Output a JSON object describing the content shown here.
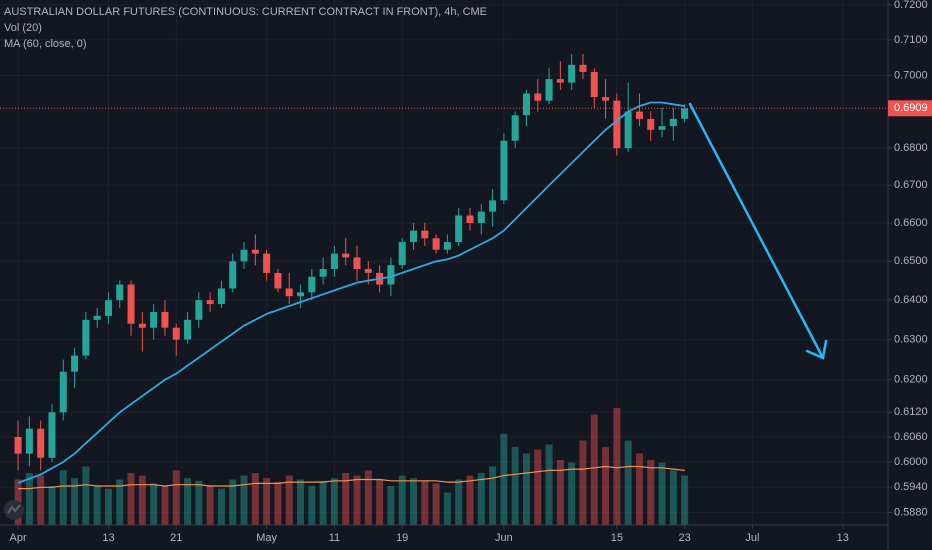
{
  "chart_data": {
    "type": "candlestick",
    "title": "AUSTRALIAN DOLLAR FUTURES (CONTINUOUS: CURRENT CONTRACT IN FRONT), 4h, CME",
    "volume_label": "Vol (20)",
    "ma_label": "MA (60, close, 0)",
    "log": true,
    "grid": true,
    "up_color": "#26a69a",
    "down_color": "#ef5350",
    "ma_color": "#2ea8e0",
    "volume_ma_color": "#f0924f",
    "last_price_color": "#ef5350",
    "open": [
      0.606,
      0.602,
      0.608,
      0.601,
      0.612,
      0.622,
      0.626,
      0.635,
      0.636,
      0.64,
      0.644,
      0.634,
      0.633,
      0.637,
      0.633,
      0.63,
      0.635,
      0.64,
      0.639,
      0.643,
      0.65,
      0.653,
      0.652,
      0.647,
      0.643,
      0.641,
      0.642,
      0.646,
      0.648,
      0.652,
      0.651,
      0.648,
      0.647,
      0.644,
      0.649,
      0.655,
      0.658,
      0.656,
      0.653,
      0.655,
      0.662,
      0.66,
      0.663,
      0.666,
      0.682,
      0.689,
      0.695,
      0.693,
      0.699,
      0.698,
      0.703,
      0.701,
      0.694,
      0.693,
      0.68,
      0.69,
      0.688,
      0.685,
      0.686,
      0.688
    ],
    "high": [
      0.61,
      0.611,
      0.61,
      0.614,
      0.625,
      0.628,
      0.637,
      0.638,
      0.642,
      0.645,
      0.645,
      0.637,
      0.639,
      0.64,
      0.634,
      0.637,
      0.642,
      0.642,
      0.645,
      0.652,
      0.655,
      0.657,
      0.653,
      0.648,
      0.647,
      0.644,
      0.648,
      0.651,
      0.654,
      0.656,
      0.654,
      0.65,
      0.649,
      0.651,
      0.656,
      0.66,
      0.66,
      0.657,
      0.657,
      0.664,
      0.664,
      0.665,
      0.669,
      0.684,
      0.69,
      0.696,
      0.699,
      0.702,
      0.704,
      0.706,
      0.706,
      0.702,
      0.699,
      0.695,
      0.698,
      0.695,
      0.69,
      0.691,
      0.691,
      0.692
    ],
    "low": [
      0.598,
      0.599,
      0.598,
      0.6,
      0.61,
      0.618,
      0.625,
      0.633,
      0.634,
      0.638,
      0.631,
      0.627,
      0.63,
      0.631,
      0.626,
      0.629,
      0.633,
      0.637,
      0.638,
      0.642,
      0.648,
      0.649,
      0.645,
      0.642,
      0.639,
      0.638,
      0.64,
      0.644,
      0.646,
      0.649,
      0.645,
      0.644,
      0.642,
      0.641,
      0.648,
      0.653,
      0.654,
      0.652,
      0.652,
      0.654,
      0.658,
      0.657,
      0.659,
      0.665,
      0.68,
      0.686,
      0.69,
      0.692,
      0.696,
      0.696,
      0.699,
      0.691,
      0.688,
      0.678,
      0.679,
      0.686,
      0.682,
      0.683,
      0.682,
      0.687
    ],
    "close": [
      0.602,
      0.608,
      0.601,
      0.612,
      0.622,
      0.626,
      0.635,
      0.636,
      0.64,
      0.644,
      0.634,
      0.633,
      0.637,
      0.633,
      0.63,
      0.635,
      0.64,
      0.639,
      0.643,
      0.65,
      0.653,
      0.652,
      0.647,
      0.643,
      0.641,
      0.642,
      0.646,
      0.648,
      0.652,
      0.651,
      0.648,
      0.647,
      0.644,
      0.649,
      0.655,
      0.658,
      0.656,
      0.653,
      0.655,
      0.662,
      0.66,
      0.663,
      0.666,
      0.682,
      0.689,
      0.695,
      0.693,
      0.699,
      0.698,
      0.703,
      0.701,
      0.694,
      0.693,
      0.68,
      0.69,
      0.688,
      0.685,
      0.686,
      0.688,
      0.6909
    ],
    "ma": [
      0.595,
      0.596,
      0.597,
      0.5985,
      0.6,
      0.602,
      0.6045,
      0.607,
      0.6095,
      0.612,
      0.614,
      0.616,
      0.618,
      0.62,
      0.6215,
      0.6235,
      0.6255,
      0.6275,
      0.6295,
      0.6315,
      0.6335,
      0.635,
      0.6365,
      0.6375,
      0.6385,
      0.6395,
      0.6405,
      0.6415,
      0.6425,
      0.6435,
      0.6445,
      0.645,
      0.6455,
      0.646,
      0.647,
      0.648,
      0.649,
      0.65,
      0.6505,
      0.6515,
      0.653,
      0.6545,
      0.656,
      0.658,
      0.661,
      0.664,
      0.667,
      0.67,
      0.673,
      0.676,
      0.679,
      0.682,
      0.685,
      0.6875,
      0.69,
      0.6915,
      0.6925,
      0.6925,
      0.692,
      0.6915
    ],
    "volume": [
      35,
      40,
      38,
      30,
      42,
      36,
      45,
      30,
      28,
      35,
      40,
      38,
      32,
      30,
      42,
      36,
      34,
      30,
      28,
      35,
      38,
      40,
      36,
      33,
      38,
      35,
      30,
      34,
      36,
      40,
      38,
      42,
      35,
      30,
      38,
      36,
      34,
      32,
      25,
      35,
      38,
      40,
      45,
      70,
      60,
      55,
      58,
      62,
      50,
      48,
      65,
      85,
      60,
      90,
      65,
      55,
      50,
      48,
      42,
      38
    ],
    "volume_ma": [
      28,
      28,
      29,
      29,
      30,
      30,
      31,
      30,
      30,
      30,
      31,
      31,
      31,
      30,
      31,
      31,
      31,
      30,
      30,
      30,
      31,
      32,
      32,
      32,
      33,
      33,
      33,
      33,
      34,
      34,
      35,
      35,
      35,
      34,
      34,
      34,
      34,
      34,
      33,
      33,
      34,
      35,
      36,
      38,
      39,
      40,
      41,
      42,
      42,
      43,
      43,
      44,
      45,
      44,
      45,
      45,
      44,
      44,
      43,
      42
    ],
    "volume_ylim": [
      0,
      100
    ],
    "last_price": 0.6909,
    "ylim": [
      0.5851,
      0.7214
    ],
    "yticks": [
      {
        "value": 0.72,
        "label": "0.7200"
      },
      {
        "value": 0.71,
        "label": "0.7100"
      },
      {
        "value": 0.7,
        "label": "0.7000"
      },
      {
        "value": 0.68,
        "label": "0.6800"
      },
      {
        "value": 0.67,
        "label": "0.6700"
      },
      {
        "value": 0.66,
        "label": "0.6600"
      },
      {
        "value": 0.65,
        "label": "0.6500"
      },
      {
        "value": 0.64,
        "label": "0.6400"
      },
      {
        "value": 0.63,
        "label": "0.6300"
      },
      {
        "value": 0.62,
        "label": "0.6200"
      },
      {
        "value": 0.612,
        "label": "0.6120"
      },
      {
        "value": 0.606,
        "label": "0.6060"
      },
      {
        "value": 0.6,
        "label": "0.6000"
      },
      {
        "value": 0.594,
        "label": "0.5940"
      },
      {
        "value": 0.588,
        "label": "0.5880"
      }
    ],
    "xlim": [
      -1.6,
      77
    ],
    "xticks": [
      {
        "value": 0,
        "label": "Apr"
      },
      {
        "value": 8,
        "label": "13"
      },
      {
        "value": 14,
        "label": "21"
      },
      {
        "value": 22,
        "label": "May"
      },
      {
        "value": 28,
        "label": "11"
      },
      {
        "value": 34,
        "label": "19"
      },
      {
        "value": 43,
        "label": "Jun"
      },
      {
        "value": 53,
        "label": "15"
      },
      {
        "value": 59,
        "label": "23"
      },
      {
        "value": 65,
        "label": "Jul"
      },
      {
        "value": 73,
        "label": "13"
      }
    ]
  }
}
